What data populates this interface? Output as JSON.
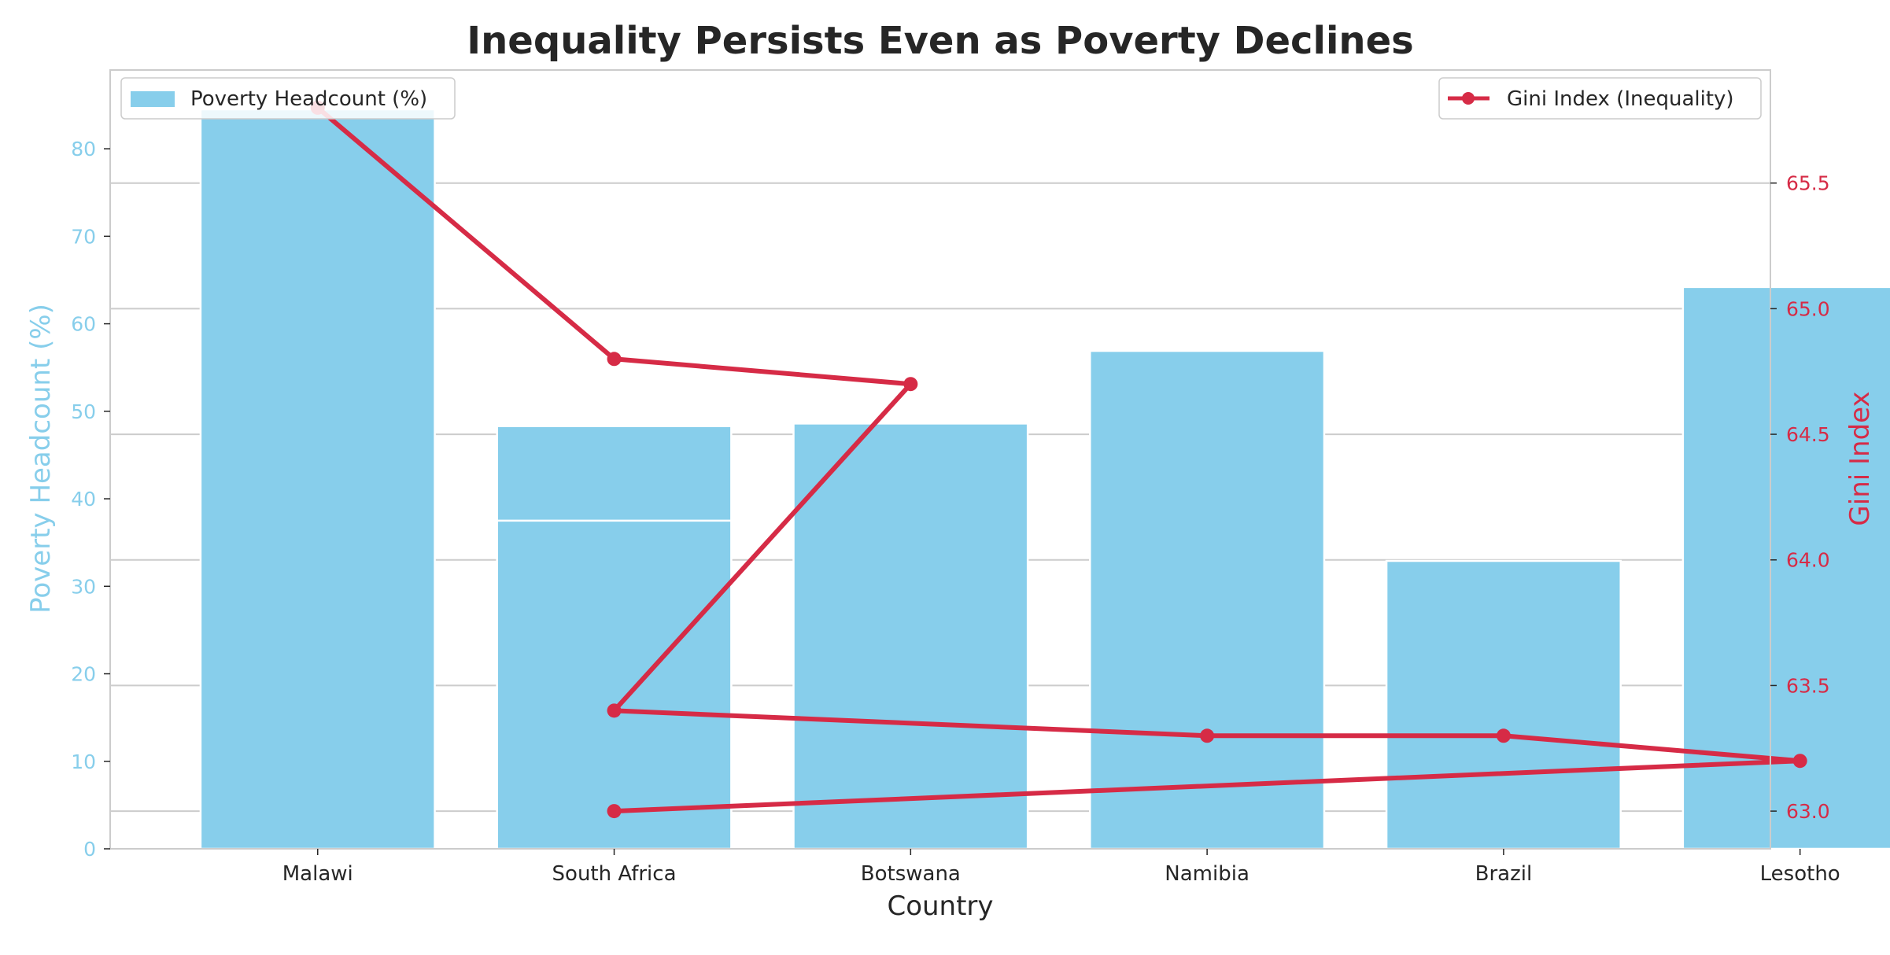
{
  "chart_data": {
    "type": "bar",
    "title": "Inequality Persists Even as Poverty Declines",
    "xlabel": "Country",
    "ylabel": "Poverty Headcount (%)",
    "y2label": "Gini Index",
    "ylim": [
      0,
      89
    ],
    "y2lim": [
      62.85,
      65.95
    ],
    "yticks": [
      0,
      10,
      20,
      30,
      40,
      50,
      60,
      70,
      80
    ],
    "y2ticks": [
      "63.0",
      "63.5",
      "64.0",
      "64.5",
      "65.0",
      "65.5"
    ],
    "categories": [
      "Malawi",
      "South Africa",
      "Botswana",
      "Namibia",
      "Brazil",
      "Lesotho"
    ],
    "bars": [
      {
        "category": "Malawi",
        "values": [
          84.5
        ]
      },
      {
        "category": "South Africa",
        "values": [
          48.3,
          37.5
        ]
      },
      {
        "category": "Botswana",
        "values": [
          48.6
        ]
      },
      {
        "category": "Namibia",
        "values": [
          56.9
        ]
      },
      {
        "category": "Brazil",
        "values": [
          32.9
        ]
      },
      {
        "category": "Lesotho",
        "values": [
          64.2
        ]
      }
    ],
    "line_series": {
      "name": "Gini Index (Inequality)",
      "points": [
        {
          "x": "Malawi",
          "y": 65.8
        },
        {
          "x": "South Africa",
          "y": 64.8
        },
        {
          "x": "Botswana",
          "y": 64.7
        },
        {
          "x": "South Africa",
          "y": 63.4
        },
        {
          "x": "Namibia",
          "y": 63.3
        },
        {
          "x": "Brazil",
          "y": 63.3
        },
        {
          "x": "Lesotho",
          "y": 63.2
        },
        {
          "x": "South Africa",
          "y": 63.0
        }
      ]
    },
    "legend": [
      {
        "label": "Poverty Headcount (%)",
        "position": "top-left"
      },
      {
        "label": "Gini Index (Inequality)",
        "position": "top-right"
      }
    ],
    "grid": true,
    "colors": {
      "bars": "#87CEEB",
      "line": "#d62b46",
      "grid": "#cccccc",
      "spine": "#cccccc",
      "text": "#262626"
    }
  }
}
